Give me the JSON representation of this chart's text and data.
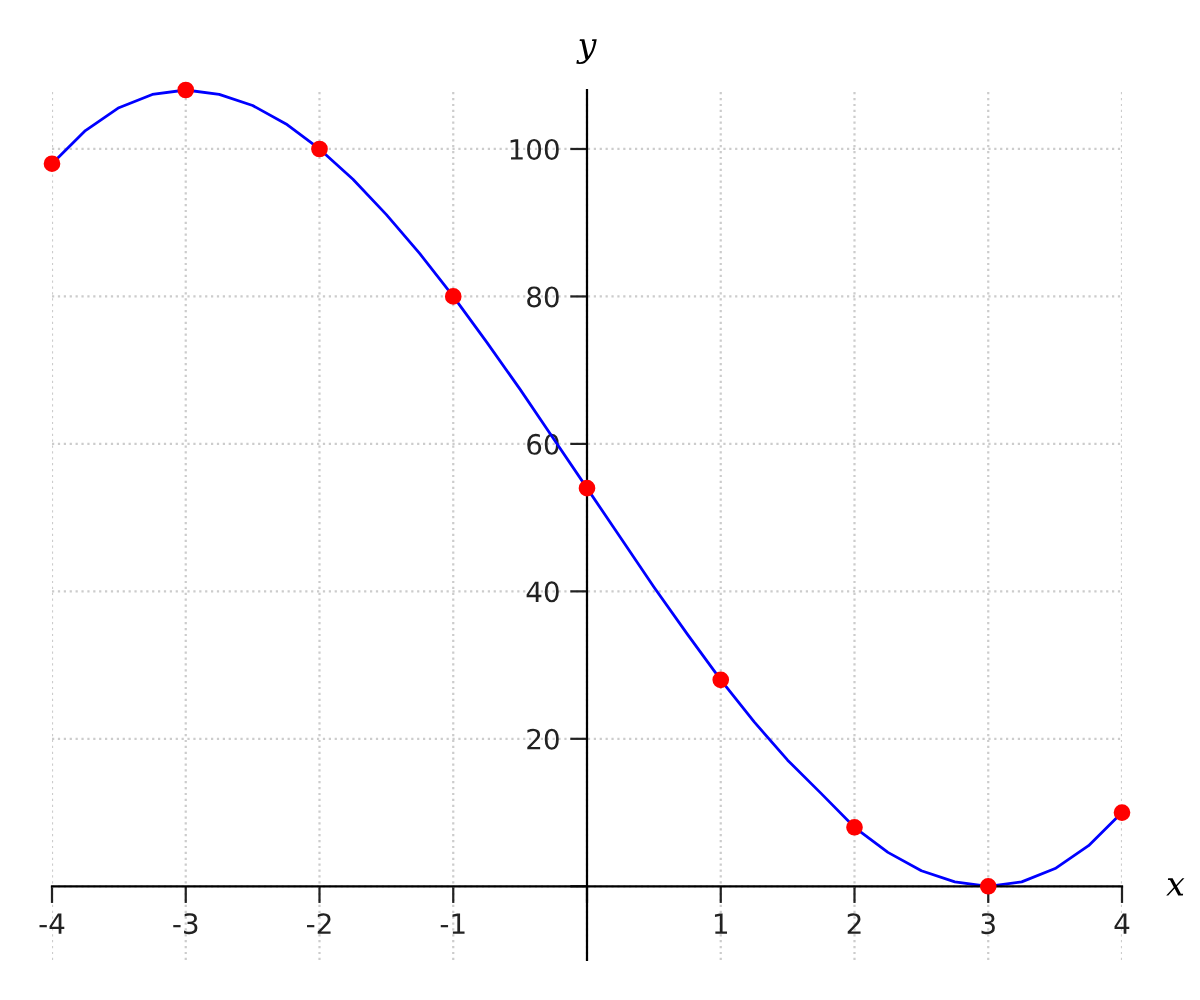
{
  "chart_data": {
    "type": "line",
    "xlabel": "x",
    "ylabel": "y",
    "series": [
      {
        "color": "#0000ff",
        "marker": "none",
        "x": [
          -4,
          -3.75,
          -3.5,
          -3.25,
          -3,
          -2.75,
          -2.5,
          -2.25,
          -2,
          -1.75,
          -1.5,
          -1.25,
          -1,
          -0.75,
          -0.5,
          -0.25,
          0,
          0.25,
          0.5,
          0.75,
          1,
          1.25,
          1.5,
          1.75,
          2,
          2.25,
          2.5,
          2.75,
          3,
          3.25,
          3.5,
          3.75,
          4
        ],
        "values": [
          98,
          102.5,
          105.6,
          107.4,
          108,
          107.4,
          105.9,
          103.4,
          100,
          95.9,
          91.1,
          85.8,
          80,
          73.8,
          67.4,
          60.7,
          54,
          47.3,
          40.6,
          34.2,
          28,
          22.3,
          17.1,
          12.6,
          8,
          4.6,
          2.1,
          0.6,
          0,
          0.6,
          2.4,
          5.5,
          10
        ]
      },
      {
        "type": "scatter",
        "color": "#ff0000",
        "marker": "circle",
        "x": [
          -4,
          -3,
          -2,
          -1,
          0,
          1,
          2,
          3,
          4
        ],
        "values": [
          98,
          108,
          100,
          80,
          54,
          28,
          8,
          0,
          10
        ]
      }
    ],
    "xlim": [
      -4,
      4
    ],
    "ylim": [
      -10,
      108
    ],
    "xticks": [
      -4,
      -3,
      -2,
      -1,
      {
        "value": 0,
        "label": null
      },
      1,
      2,
      3,
      4
    ],
    "yticks": [
      {
        "value": 0,
        "label": null
      },
      20,
      40,
      60,
      80,
      100
    ],
    "grid": true
  }
}
